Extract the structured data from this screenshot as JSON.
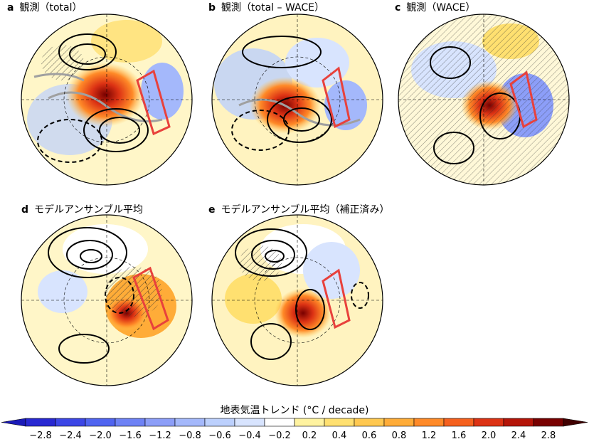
{
  "figure": {
    "panels": [
      {
        "letter": "a",
        "title": "観測（total）"
      },
      {
        "letter": "b",
        "title": "観測（total – WACE）"
      },
      {
        "letter": "c",
        "title": "観測（WACE）"
      },
      {
        "letter": "d",
        "title": "モデルアンサンブル平均"
      },
      {
        "letter": "e",
        "title": "モデルアンサンブル平均（補正済み）"
      }
    ],
    "colorbar": {
      "title": "地表気温トレンド (°C / decade)",
      "ticks": [
        "−2.8",
        "−2.4",
        "−2.0",
        "−1.6",
        "−1.2",
        "−0.8",
        "−0.6",
        "−0.4",
        "−0.2",
        "0.2",
        "0.4",
        "0.6",
        "0.8",
        "1.2",
        "1.6",
        "2.0",
        "2.4",
        "2.8"
      ],
      "colors": [
        "#2828d2",
        "#3c46e6",
        "#5064f0",
        "#6e82f5",
        "#8c9ef8",
        "#a4b8fb",
        "#bcd0fd",
        "#d8e4fe",
        "#ffffff",
        "#fff3a0",
        "#ffe070",
        "#ffc850",
        "#ffac38",
        "#ff8a28",
        "#f5601e",
        "#dc3214",
        "#b41408",
        "#780000"
      ]
    }
  }
}
